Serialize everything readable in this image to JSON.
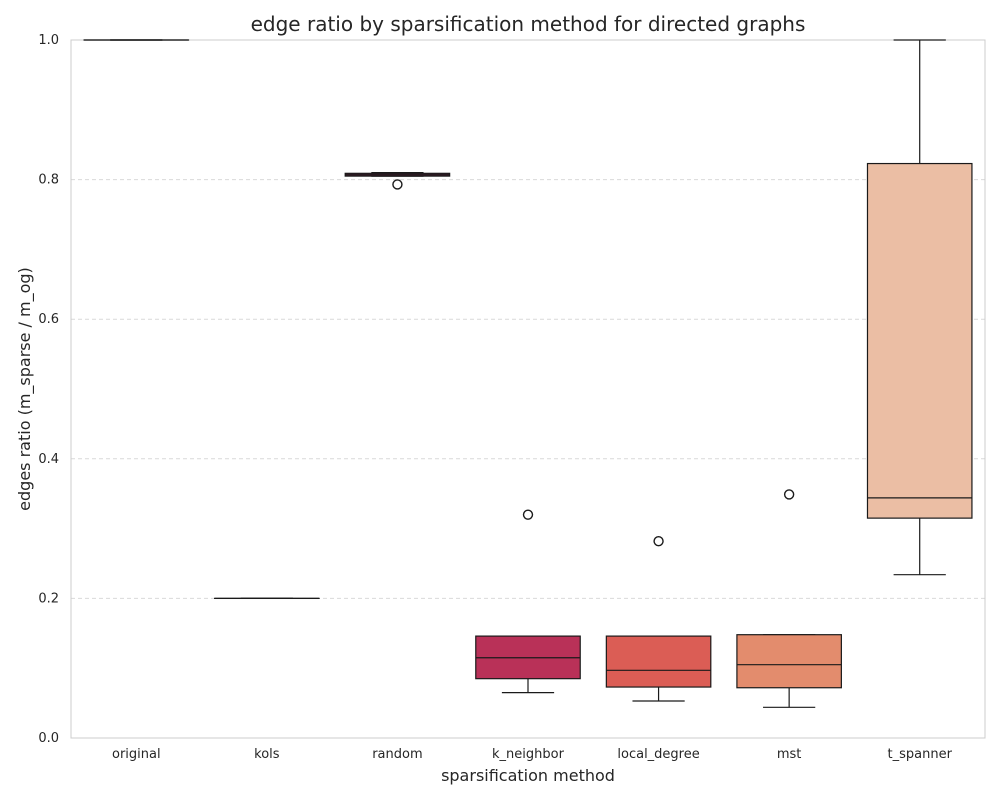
{
  "chart_data": {
    "type": "box",
    "title": "edge ratio by sparsification method for directed graphs",
    "xlabel": "sparsification method",
    "ylabel": "edges ratio (m_sparse / m_og)",
    "ylim": [
      0,
      1.0
    ],
    "yticks": [
      0.0,
      0.2,
      0.4,
      0.6,
      0.8,
      1.0
    ],
    "ytick_labels": [
      "0.0",
      "0.2",
      "0.4",
      "0.6",
      "0.8",
      "1.0"
    ],
    "grid": "y",
    "categories": [
      "original",
      "kols",
      "random",
      "k_neighbor",
      "local_degree",
      "mst",
      "t_spanner"
    ],
    "boxes": [
      {
        "name": "original",
        "whisker_low": 1.0,
        "q1": 1.0,
        "median": 1.0,
        "q3": 1.0,
        "whisker_high": 1.0,
        "fliers": [],
        "color": "#3a1f4a"
      },
      {
        "name": "kols",
        "whisker_low": 0.2,
        "q1": 0.2,
        "median": 0.2,
        "q3": 0.2,
        "whisker_high": 0.2,
        "fliers": [],
        "color": "#5c1f5a"
      },
      {
        "name": "random",
        "whisker_low": 0.805,
        "q1": 0.805,
        "median": 0.807,
        "q3": 0.809,
        "whisker_high": 0.81,
        "fliers": [
          0.793
        ],
        "color": "#8c1d4f"
      },
      {
        "name": "k_neighbor",
        "whisker_low": 0.065,
        "q1": 0.085,
        "median": 0.115,
        "q3": 0.146,
        "whisker_high": 0.146,
        "fliers": [
          0.32
        ],
        "color": "#b93158"
      },
      {
        "name": "local_degree",
        "whisker_low": 0.053,
        "q1": 0.073,
        "median": 0.097,
        "q3": 0.146,
        "whisker_high": 0.146,
        "fliers": [
          0.282
        ],
        "color": "#db5d55"
      },
      {
        "name": "mst",
        "whisker_low": 0.044,
        "q1": 0.072,
        "median": 0.105,
        "q3": 0.148,
        "whisker_high": 0.148,
        "fliers": [
          0.349
        ],
        "color": "#e38c6d"
      },
      {
        "name": "t_spanner",
        "whisker_low": 0.234,
        "q1": 0.315,
        "median": 0.344,
        "q3": 0.823,
        "whisker_high": 1.0,
        "fliers": [],
        "color": "#ebbea4"
      }
    ]
  }
}
